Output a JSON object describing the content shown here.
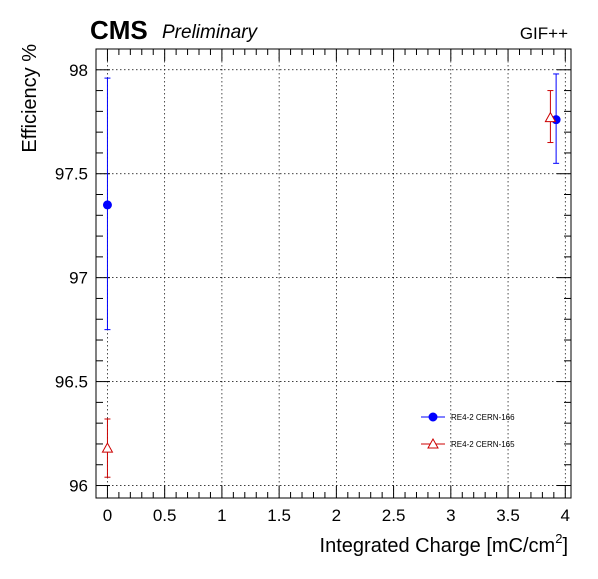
{
  "header": {
    "experiment": "CMS",
    "status": "Preliminary",
    "facility": "GIF++"
  },
  "chart_data": {
    "type": "scatter",
    "xlabel": "Integrated Charge [mC/cm",
    "xlabel_superscript": "2",
    "xlabel_suffix": "]",
    "ylabel": "Efficiency %",
    "xlim": [
      -0.1,
      4.05
    ],
    "ylim": [
      95.94,
      98.1
    ],
    "grid": true,
    "legend_position": "lower-right",
    "x_ticks": [
      0,
      0.5,
      1,
      1.5,
      2,
      2.5,
      3,
      3.5,
      4
    ],
    "x_tick_labels": [
      "0",
      "0.5",
      "1",
      "1.5",
      "2",
      "2.5",
      "3",
      "3.5",
      "4"
    ],
    "y_ticks": [
      96,
      96.5,
      97,
      97.5,
      98
    ],
    "y_tick_labels": [
      "96",
      "96.5",
      "97",
      "97.5",
      "98"
    ],
    "series": [
      {
        "name": "RE4-2 CERN-166",
        "color": "#0000ff",
        "marker": "circle",
        "points": [
          {
            "x": 0,
            "y": 97.35,
            "yerr_low": 0.6,
            "yerr_high": 0.61
          },
          {
            "x": 3.92,
            "y": 97.76,
            "yerr_low": 0.21,
            "yerr_high": 0.22
          }
        ]
      },
      {
        "name": "RE4-2 CERN-165",
        "color": "#cc0000",
        "marker": "open-triangle",
        "points": [
          {
            "x": 0,
            "y": 96.18,
            "yerr_low": 0.14,
            "yerr_high": 0.14
          },
          {
            "x": 3.87,
            "y": 97.77,
            "yerr_low": 0.12,
            "yerr_high": 0.13
          }
        ]
      }
    ]
  }
}
